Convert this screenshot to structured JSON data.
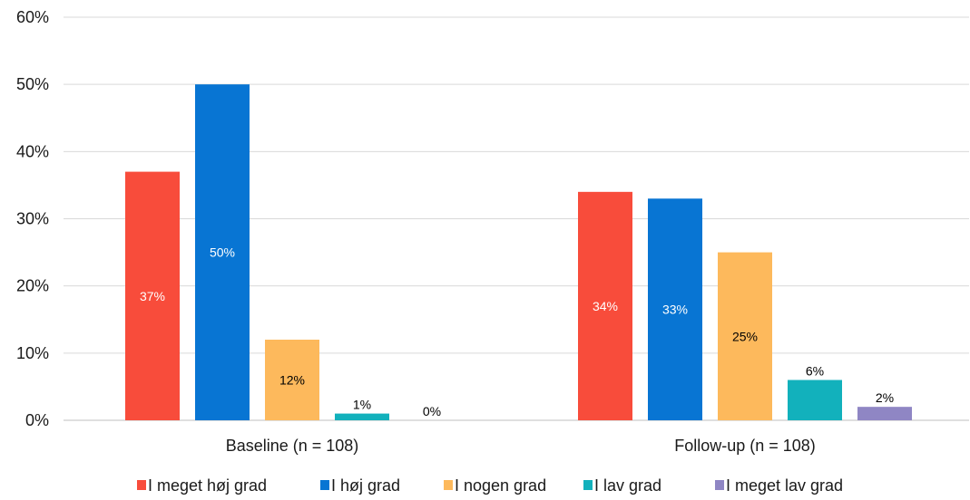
{
  "chart_data": {
    "type": "bar",
    "categories": [
      "Baseline (n = 108)",
      "Follow-up (n = 108)"
    ],
    "series": [
      {
        "name": "I meget høj grad",
        "color": "#F84C3B",
        "label_color": "#ffffff",
        "values": [
          37,
          34
        ],
        "labels": [
          "37%",
          "34%"
        ]
      },
      {
        "name": "I høj grad",
        "color": "#0875D3",
        "label_color": "#ffffff",
        "values": [
          50,
          33
        ],
        "labels": [
          "50%",
          "33%"
        ]
      },
      {
        "name": "I nogen grad",
        "color": "#FDB95C",
        "label_color": "#000000",
        "values": [
          12,
          25
        ],
        "labels": [
          "12%",
          "25%"
        ]
      },
      {
        "name": "I lav grad",
        "color": "#12B1BC",
        "label_color": "#000000",
        "values": [
          1,
          6
        ],
        "labels": [
          "1%",
          "6%"
        ]
      },
      {
        "name": "I meget lav grad",
        "color": "#8F86C4",
        "label_color": "#000000",
        "values": [
          0,
          2
        ],
        "labels": [
          "0%",
          "2%"
        ]
      }
    ],
    "ylim": [
      0,
      60
    ],
    "yticks": [
      0,
      10,
      20,
      30,
      40,
      50,
      60
    ],
    "ytick_labels": [
      "0%",
      "10%",
      "20%",
      "30%",
      "40%",
      "50%",
      "60%"
    ],
    "title": "",
    "xlabel": "",
    "ylabel": "",
    "grid": true,
    "legend_position": "bottom"
  }
}
